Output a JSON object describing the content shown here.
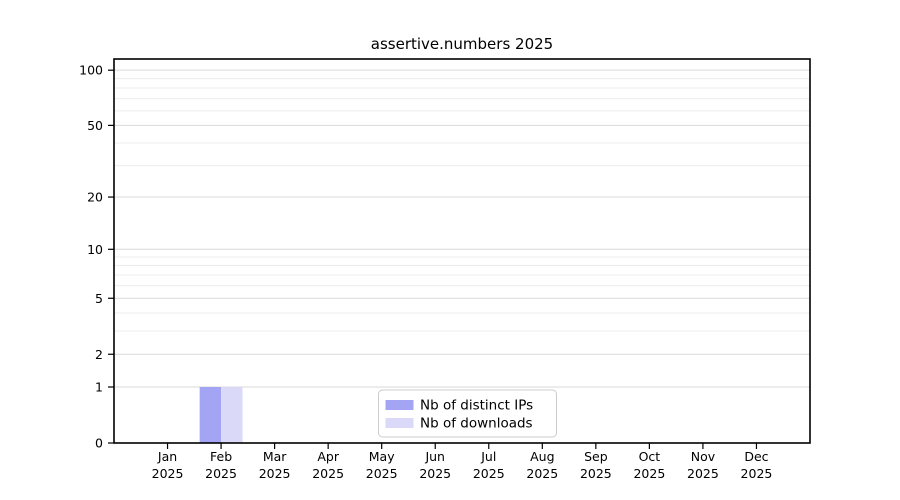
{
  "page": {
    "background": "#ffffff"
  },
  "chart_data": {
    "type": "bar",
    "title": "assertive.numbers 2025",
    "categories": [
      "Jan 2025",
      "Feb 2025",
      "Mar 2025",
      "Apr 2025",
      "May 2025",
      "Jun 2025",
      "Jul 2025",
      "Aug 2025",
      "Sep 2025",
      "Oct 2025",
      "Nov 2025",
      "Dec 2025"
    ],
    "series": [
      {
        "name": "Nb of distinct IPs",
        "color": "#a4a4f4",
        "values": [
          0,
          1,
          0,
          0,
          0,
          0,
          0,
          0,
          0,
          0,
          0,
          0
        ]
      },
      {
        "name": "Nb of downloads",
        "color": "#dadaf8",
        "values": [
          0,
          1,
          0,
          0,
          0,
          0,
          0,
          0,
          0,
          0,
          0,
          0
        ]
      }
    ],
    "xlabel": "",
    "ylabel": "",
    "yscale": "log1p",
    "ylim": [
      0,
      115
    ],
    "xlim_units": [
      -1,
      12
    ],
    "y_major_ticks": [
      0,
      1,
      2,
      5,
      10,
      20,
      50,
      100
    ],
    "y_minor_gridlines": [
      3,
      4,
      6,
      7,
      8,
      9,
      30,
      40,
      60,
      70,
      80,
      90
    ],
    "grid": "horizontal",
    "legend_position": "lower center",
    "bar_width_units": 0.4,
    "colors": {
      "major_grid": "#d9d9d9",
      "minor_grid": "#ececec",
      "spine": "#000000",
      "tick": "#000000",
      "text": "#000000",
      "legend_border": "#cccccc",
      "legend_background": "#ffffff"
    }
  }
}
